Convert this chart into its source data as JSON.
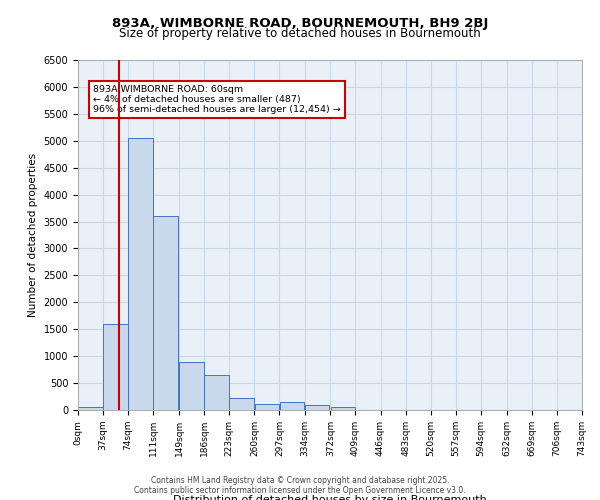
{
  "title1": "893A, WIMBORNE ROAD, BOURNEMOUTH, BH9 2BJ",
  "title2": "Size of property relative to detached houses in Bournemouth",
  "xlabel": "Distribution of detached houses by size in Bournemouth",
  "ylabel": "Number of detached properties",
  "annotation_title": "893A WIMBORNE ROAD: 60sqm",
  "annotation_line1": "← 4% of detached houses are smaller (487)",
  "annotation_line2": "96% of semi-detached houses are larger (12,454) →",
  "property_size_sqm": 60,
  "bin_edges": [
    0,
    37,
    74,
    111,
    149,
    186,
    223,
    260,
    297,
    334,
    372,
    409,
    446,
    483,
    520,
    557,
    594,
    632,
    669,
    706,
    743
  ],
  "bar_heights": [
    50,
    1600,
    5050,
    3600,
    900,
    650,
    230,
    120,
    140,
    90,
    50,
    0,
    0,
    0,
    0,
    0,
    0,
    0,
    0,
    0
  ],
  "bar_color": "#c9d9ec",
  "bar_edge_color": "#4472c4",
  "vertical_line_color": "#cc0000",
  "annotation_box_color": "#cc0000",
  "annotation_fill": "#ffffff",
  "grid_color": "#c8d8e8",
  "background_color": "#eaf0f8",
  "ylim": [
    0,
    6500
  ],
  "yticks": [
    0,
    500,
    1000,
    1500,
    2000,
    2500,
    3000,
    3500,
    4000,
    4500,
    5000,
    5500,
    6000,
    6500
  ],
  "footer1": "Contains HM Land Registry data © Crown copyright and database right 2025.",
  "footer2": "Contains public sector information licensed under the Open Government Licence v3.0."
}
